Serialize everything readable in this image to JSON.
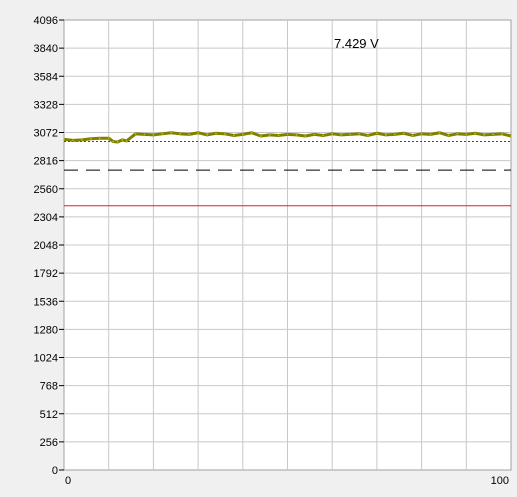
{
  "chart_data": {
    "type": "line",
    "title": "",
    "xlabel": "",
    "ylabel": "",
    "xlim": [
      0,
      100
    ],
    "ylim": [
      0,
      4096
    ],
    "x_tick_labels": [
      "0",
      "100"
    ],
    "y_ticks": [
      0,
      256,
      512,
      768,
      1024,
      1280,
      1536,
      1792,
      2048,
      2304,
      2560,
      2816,
      3072,
      3328,
      3584,
      3840,
      4096
    ],
    "x_gridlines": 10,
    "grid": true,
    "annotation": "7.429 V",
    "reference_lines": [
      {
        "style": "dotted",
        "color": "#3030ff",
        "y": 2990
      },
      {
        "style": "dashed",
        "color": "#000000",
        "y": 2730
      },
      {
        "style": "solid",
        "color": "#e02020",
        "y": 2405
      }
    ],
    "series": [
      {
        "color": "#808000",
        "x": [
          0,
          2,
          4,
          6,
          8,
          10,
          11,
          12,
          13,
          14,
          16,
          18,
          20,
          22,
          24,
          26,
          28,
          30,
          32,
          34,
          36,
          38,
          40,
          42,
          44,
          46,
          48,
          50,
          52,
          54,
          56,
          58,
          60,
          62,
          64,
          66,
          68,
          70,
          72,
          74,
          76,
          78,
          80,
          82,
          84,
          86,
          88,
          90,
          92,
          94,
          96,
          98,
          100
        ],
        "y": [
          3010,
          3000,
          3005,
          3015,
          3020,
          3020,
          2990,
          2985,
          3005,
          2995,
          3060,
          3055,
          3050,
          3060,
          3070,
          3060,
          3055,
          3070,
          3050,
          3065,
          3060,
          3045,
          3055,
          3070,
          3040,
          3050,
          3045,
          3055,
          3050,
          3040,
          3055,
          3045,
          3060,
          3050,
          3055,
          3060,
          3045,
          3065,
          3050,
          3055,
          3065,
          3045,
          3060,
          3055,
          3070,
          3045,
          3060,
          3055,
          3065,
          3050,
          3055,
          3060,
          3040
        ]
      }
    ]
  }
}
